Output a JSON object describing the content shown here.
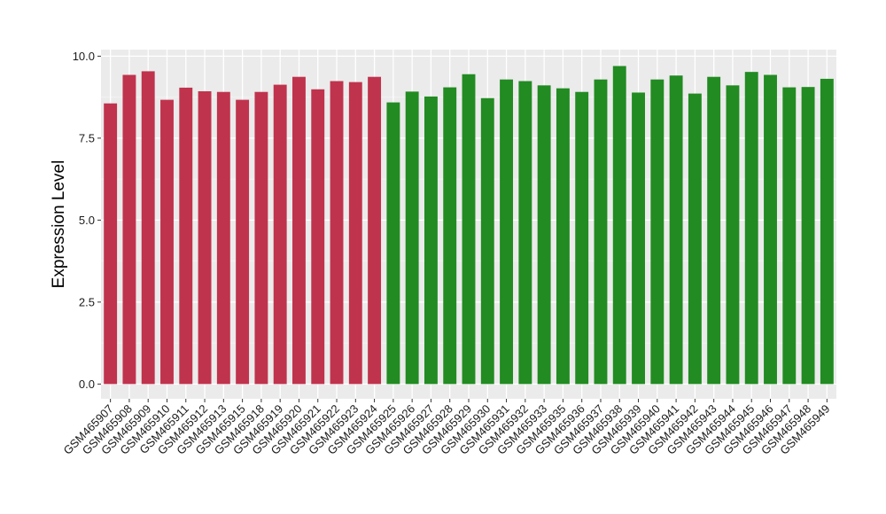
{
  "chart_data": {
    "type": "bar",
    "title": "",
    "xlabel": "",
    "ylabel": "Expression Level",
    "ylim": [
      -0.45,
      10.2
    ],
    "yticks": [
      0.0,
      2.5,
      5.0,
      7.5,
      10.0
    ],
    "ytick_labels": [
      "0.0",
      "2.5",
      "5.0",
      "7.5",
      "10.0"
    ],
    "grid": true,
    "legend": "none",
    "panel_background": "#ebebeb",
    "categories": [
      "GSM465907",
      "GSM465908",
      "GSM465909",
      "GSM465910",
      "GSM465911",
      "GSM465912",
      "GSM465913",
      "GSM465915",
      "GSM465918",
      "GSM465919",
      "GSM465920",
      "GSM465921",
      "GSM465922",
      "GSM465923",
      "GSM465924",
      "GSM465925",
      "GSM465926",
      "GSM465927",
      "GSM465928",
      "GSM465929",
      "GSM465930",
      "GSM465931",
      "GSM465932",
      "GSM465933",
      "GSM465935",
      "GSM465936",
      "GSM465937",
      "GSM465938",
      "GSM465939",
      "GSM465940",
      "GSM465941",
      "GSM465942",
      "GSM465943",
      "GSM465944",
      "GSM465945",
      "GSM465946",
      "GSM465947",
      "GSM465948",
      "GSM465949"
    ],
    "values": [
      8.56,
      9.43,
      9.54,
      8.67,
      9.04,
      8.93,
      8.91,
      8.67,
      8.91,
      9.13,
      9.37,
      8.99,
      9.24,
      9.21,
      9.37,
      8.59,
      8.92,
      8.77,
      9.05,
      9.45,
      8.72,
      9.29,
      9.24,
      9.11,
      9.02,
      8.91,
      9.29,
      9.7,
      8.89,
      9.29,
      9.41,
      8.86,
      9.37,
      9.11,
      9.52,
      9.43,
      9.05,
      9.06,
      9.31
    ],
    "bar_colors": [
      "#c0334d",
      "#c0334d",
      "#c0334d",
      "#c0334d",
      "#c0334d",
      "#c0334d",
      "#c0334d",
      "#c0334d",
      "#c0334d",
      "#c0334d",
      "#c0334d",
      "#c0334d",
      "#c0334d",
      "#c0334d",
      "#c0334d",
      "#228b22",
      "#228b22",
      "#228b22",
      "#228b22",
      "#228b22",
      "#228b22",
      "#228b22",
      "#228b22",
      "#228b22",
      "#228b22",
      "#228b22",
      "#228b22",
      "#228b22",
      "#228b22",
      "#228b22",
      "#228b22",
      "#228b22",
      "#228b22",
      "#228b22",
      "#228b22",
      "#228b22",
      "#228b22",
      "#228b22",
      "#228b22"
    ]
  }
}
